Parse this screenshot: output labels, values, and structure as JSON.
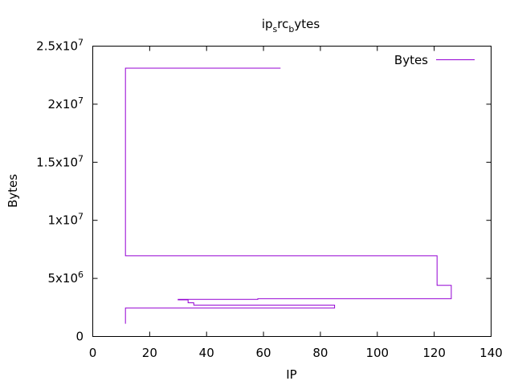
{
  "chart_data": {
    "type": "line",
    "line_style": "steps",
    "title": {
      "main": "ip",
      "sub1": "s",
      "mid": "rc",
      "sub2": "b",
      "tail": "ytes"
    },
    "xlabel": "IP",
    "ylabel": "Bytes",
    "xlim": [
      0,
      140
    ],
    "ylim": [
      0,
      25000000
    ],
    "x_ticks": [
      {
        "value": 0,
        "label": "0"
      },
      {
        "value": 20,
        "label": "20"
      },
      {
        "value": 40,
        "label": "40"
      },
      {
        "value": 60,
        "label": "60"
      },
      {
        "value": 80,
        "label": "80"
      },
      {
        "value": 100,
        "label": "100"
      },
      {
        "value": 120,
        "label": "120"
      },
      {
        "value": 140,
        "label": "140"
      }
    ],
    "y_ticks": [
      {
        "value": 0,
        "mant": "0",
        "exp": ""
      },
      {
        "value": 5000000,
        "mant": "5x10",
        "exp": "6"
      },
      {
        "value": 10000000,
        "mant": "1x10",
        "exp": "7"
      },
      {
        "value": 15000000,
        "mant": "1.5x10",
        "exp": "7"
      },
      {
        "value": 20000000,
        "mant": "2x10",
        "exp": "7"
      },
      {
        "value": 25000000,
        "mant": "2.5x10",
        "exp": "7"
      }
    ],
    "grid": false,
    "legend_position": "top-right",
    "series": [
      {
        "name": "Bytes",
        "color": "#9400d3",
        "x": [
          11.5,
          11.5,
          85,
          85,
          35.5,
          35.5,
          33.5,
          33.5,
          30,
          30,
          58,
          58,
          126,
          126,
          121,
          121,
          11.5,
          11.5,
          66
        ],
        "y": [
          1100000,
          2450000,
          2450000,
          2700000,
          2700000,
          2900000,
          2900000,
          3150000,
          3150000,
          3200000,
          3200000,
          3250000,
          3250000,
          4400000,
          4400000,
          6950000,
          6950000,
          23100000,
          23100000
        ]
      }
    ]
  }
}
